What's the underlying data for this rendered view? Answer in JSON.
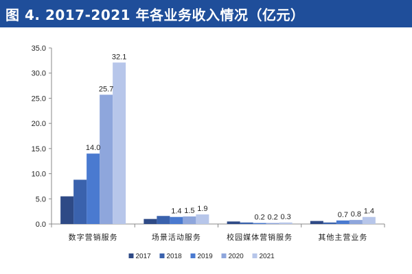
{
  "header": {
    "title": "图 4. 2017-2021 年各业务收入情况（亿元）"
  },
  "chart_data": {
    "type": "bar",
    "categories": [
      "数字营销服务",
      "场景活动服务",
      "校园媒体营销服务",
      "其他主营业务"
    ],
    "series": [
      {
        "name": "2017",
        "color": "#2e4a86",
        "values": [
          5.5,
          1.0,
          0.5,
          0.6
        ]
      },
      {
        "name": "2018",
        "color": "#3a62ad",
        "values": [
          8.8,
          1.6,
          0.3,
          0.3
        ]
      },
      {
        "name": "2019",
        "color": "#4a7ad0",
        "values": [
          14.0,
          1.4,
          0.2,
          0.7
        ]
      },
      {
        "name": "2020",
        "color": "#8ea6dc",
        "values": [
          25.7,
          1.5,
          0.2,
          0.8
        ]
      },
      {
        "name": "2021",
        "color": "#b7c6ea",
        "values": [
          32.1,
          1.9,
          0.3,
          1.4
        ]
      }
    ],
    "data_labels": [
      {
        "category": 0,
        "series": 2,
        "text": "14.0"
      },
      {
        "category": 0,
        "series": 3,
        "text": "25.7"
      },
      {
        "category": 0,
        "series": 4,
        "text": "32.1"
      },
      {
        "category": 1,
        "series": 2,
        "text": "1.4"
      },
      {
        "category": 1,
        "series": 3,
        "text": "1.5"
      },
      {
        "category": 1,
        "series": 4,
        "text": "1.9"
      },
      {
        "category": 2,
        "series": 2,
        "text": "0.2"
      },
      {
        "category": 2,
        "series": 3,
        "text": "0.2"
      },
      {
        "category": 2,
        "series": 4,
        "text": "0.3"
      },
      {
        "category": 3,
        "series": 2,
        "text": "0.7"
      },
      {
        "category": 3,
        "series": 3,
        "text": "0.8"
      },
      {
        "category": 3,
        "series": 4,
        "text": "1.4"
      }
    ],
    "y_ticks": [
      "0.0",
      "5.0",
      "10.0",
      "15.0",
      "20.0",
      "25.0",
      "30.0",
      "35.0"
    ],
    "ylim": [
      0,
      35
    ],
    "grid": false,
    "legend_position": "bottom"
  }
}
